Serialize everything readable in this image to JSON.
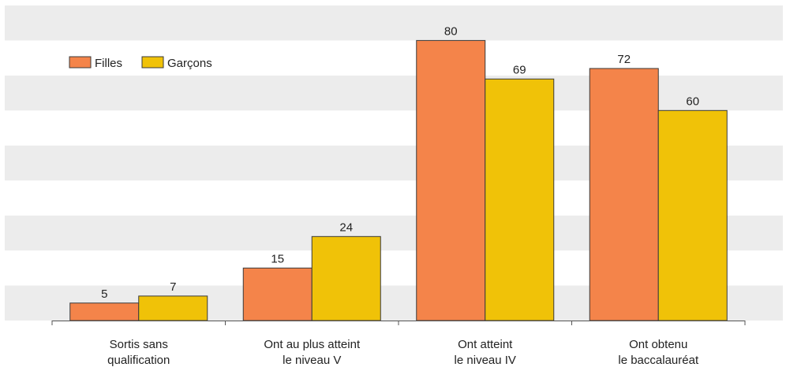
{
  "chart_data": {
    "type": "bar",
    "title": "",
    "xlabel": "",
    "ylabel": "",
    "categories": [
      [
        "Sortis sans",
        "qualification"
      ],
      [
        "Ont au plus atteint",
        "le niveau V"
      ],
      [
        "Ont atteint",
        "le niveau IV"
      ],
      [
        "Ont obtenu",
        "le baccalauréat"
      ]
    ],
    "series": [
      {
        "name": "Filles",
        "color": "#f4844a",
        "values": [
          5,
          15,
          80,
          72
        ]
      },
      {
        "name": "Garçons",
        "color": "#f0c208",
        "values": [
          7,
          24,
          69,
          60
        ]
      }
    ],
    "ylim": [
      0,
      90
    ],
    "grid": true,
    "grid_style": "alternating-bands",
    "band_color": "#ececec",
    "legend_position": "top-left",
    "value_labels": true
  }
}
